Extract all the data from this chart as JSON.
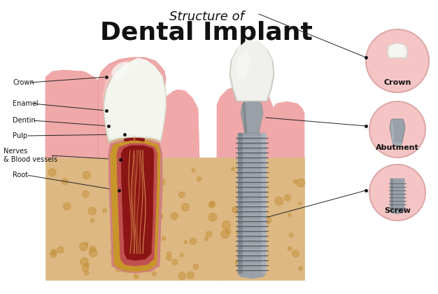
{
  "title_line1": "Structure of",
  "title_line2": "Dental Implant",
  "bg_color": "#ffffff",
  "pink_light": "#f5c5c5",
  "pink_gum": "#f0a8a8",
  "pink_root": "#e89090",
  "bone_color": "#ddb882",
  "bone_dot_color": "#c8a060",
  "dentin_color": "#c8952a",
  "pulp_outer_color": "#c05050",
  "pulp_inner_color": "#8b1515",
  "nerve_color": "#cc7755",
  "enamel_color": "#d0c8a0",
  "crown_white": "#e8e8df",
  "crown_bright": "#f5f5f0",
  "implant_gray1": "#9aa0a8",
  "implant_gray2": "#7a8088",
  "implant_light": "#c8cdd2",
  "implant_dark": "#585e64",
  "label_color": "#111111",
  "line_color": "#222222",
  "labels_right": [
    "Crown",
    "Abutment",
    "Screw"
  ]
}
